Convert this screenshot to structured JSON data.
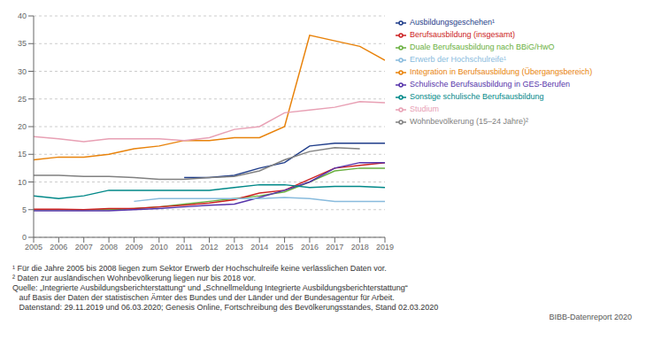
{
  "chart_data": {
    "type": "line",
    "x": [
      2005,
      2006,
      2007,
      2008,
      2009,
      2010,
      2011,
      2012,
      2013,
      2014,
      2015,
      2016,
      2017,
      2018,
      2019
    ],
    "xlim": [
      2005,
      2019
    ],
    "xticks": [
      2005,
      2006,
      2007,
      2008,
      2009,
      2010,
      2011,
      2012,
      2013,
      2014,
      2015,
      2016,
      2017,
      2018,
      2019
    ],
    "ylim": [
      0,
      40
    ],
    "yticks": [
      0,
      5,
      10,
      15,
      20,
      25,
      30,
      35,
      40
    ],
    "grid": true,
    "legend": "right",
    "series": [
      {
        "name": "Integration in Berufsausbildung (Übergangsbereich)",
        "color": "#e8820a",
        "values": [
          14.0,
          14.5,
          14.5,
          15.0,
          16.0,
          16.5,
          17.5,
          17.5,
          18.0,
          18.0,
          20.0,
          36.5,
          35.5,
          34.5,
          32.0
        ]
      },
      {
        "name": "Studium",
        "color": "#e8a0b4",
        "values": [
          18.2,
          17.8,
          17.3,
          17.8,
          17.8,
          17.8,
          17.5,
          18.0,
          19.5,
          20.0,
          22.5,
          23.0,
          23.5,
          24.5,
          24.3
        ]
      },
      {
        "name": "Ausbildungsgeschehen¹",
        "color": "#1f3d8a",
        "values": [
          null,
          null,
          null,
          null,
          null,
          null,
          10.8,
          10.8,
          11.2,
          12.5,
          13.5,
          16.5,
          17.0,
          17.0,
          17.0
        ]
      },
      {
        "name": "Wohnbevölkerung (15–24 Jahre)²",
        "color": "#808080",
        "values": [
          11.2,
          11.2,
          11.0,
          11.0,
          10.8,
          10.5,
          10.5,
          10.8,
          11.0,
          12.0,
          14.0,
          15.5,
          16.2,
          16.0,
          null
        ]
      },
      {
        "name": "Duale Berufsausbildung nach BBiG/HwO",
        "color": "#6ab040",
        "values": [
          5.0,
          5.0,
          5.0,
          5.0,
          5.2,
          5.5,
          6.0,
          6.5,
          7.0,
          7.5,
          8.2,
          10.0,
          12.0,
          12.5,
          12.5
        ]
      },
      {
        "name": "Berufsausbildung (insgesamt)",
        "color": "#cc2222",
        "values": [
          5.1,
          5.1,
          5.0,
          5.2,
          5.2,
          5.5,
          5.8,
          6.2,
          6.8,
          8.0,
          8.5,
          10.5,
          12.5,
          13.0,
          13.5
        ]
      },
      {
        "name": "Schulische Berufsausbildung in GES-Berufen",
        "color": "#5533aa",
        "values": [
          4.8,
          4.8,
          4.8,
          4.8,
          5.0,
          5.2,
          5.5,
          5.8,
          6.0,
          7.2,
          8.5,
          10.0,
          12.5,
          13.5,
          13.5
        ]
      },
      {
        "name": "Sonstige schulische Berufsausbildung",
        "color": "#008888",
        "values": [
          7.5,
          7.0,
          7.5,
          8.5,
          8.5,
          8.5,
          8.5,
          8.5,
          9.0,
          9.5,
          9.5,
          9.0,
          9.2,
          9.2,
          9.0
        ]
      },
      {
        "name": "Erwerb der Hochschulreife¹",
        "color": "#88bbdd",
        "values": [
          null,
          null,
          null,
          null,
          6.5,
          7.0,
          7.0,
          7.0,
          7.0,
          7.0,
          7.2,
          7.0,
          6.5,
          6.5,
          6.5
        ]
      }
    ],
    "annotations": [
      "¹ Für die Jahre 2005 bis 2008 liegen zum Sektor Erwerb der Hochschulreife keine verlässlichen Daten vor.",
      "² Daten zur ausländischen Wohnbevölkerung liegen nur bis 2018 vor.",
      "Quelle: „Integrierte Ausbildungsberichterstattung“ und „Schnellmeldung Integrierte Ausbildungsberichterstattung“",
      "   auf Basis der Daten der statistischen Ämter des Bundes und der Länder und der Bundesagentur für Arbeit.",
      "   Datenstand: 29.11.2019 und 06.03.2020; Genesis Online, Fortschreibung des Bevölkerungsstandes, Stand 02.03.2020",
      "BIBB-Datenreport 2020"
    ]
  }
}
